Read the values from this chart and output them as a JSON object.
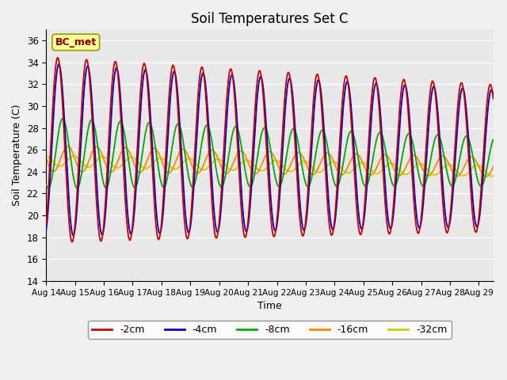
{
  "title": "Soil Temperatures Set C",
  "xlabel": "Time",
  "ylabel": "Soil Temperature (C)",
  "ylim": [
    14,
    37
  ],
  "yticks": [
    14,
    16,
    18,
    20,
    22,
    24,
    26,
    28,
    30,
    32,
    34,
    36
  ],
  "x_labels": [
    "Aug 14",
    "Aug 15",
    "Aug 16",
    "Aug 17",
    "Aug 18",
    "Aug 19",
    "Aug 20",
    "Aug 21",
    "Aug 22",
    "Aug 23",
    "Aug 24",
    "Aug 25",
    "Aug 26",
    "Aug 27",
    "Aug 28",
    "Aug 29"
  ],
  "series": {
    "-2cm": {
      "color": "#cc0000"
    },
    "-4cm": {
      "color": "#0000cc"
    },
    "-8cm": {
      "color": "#00aa00"
    },
    "-16cm": {
      "color": "#ff8800"
    },
    "-32cm": {
      "color": "#cccc00"
    }
  },
  "legend_label": "BC_met",
  "legend_box_facecolor": "#ffff99",
  "legend_text_color": "#880000",
  "plot_bg_color": "#e8e8e8",
  "fig_bg_color": "#f0f0f0",
  "grid_color": "#ffffff",
  "figsize": [
    6.4,
    4.8
  ],
  "dpi": 100
}
